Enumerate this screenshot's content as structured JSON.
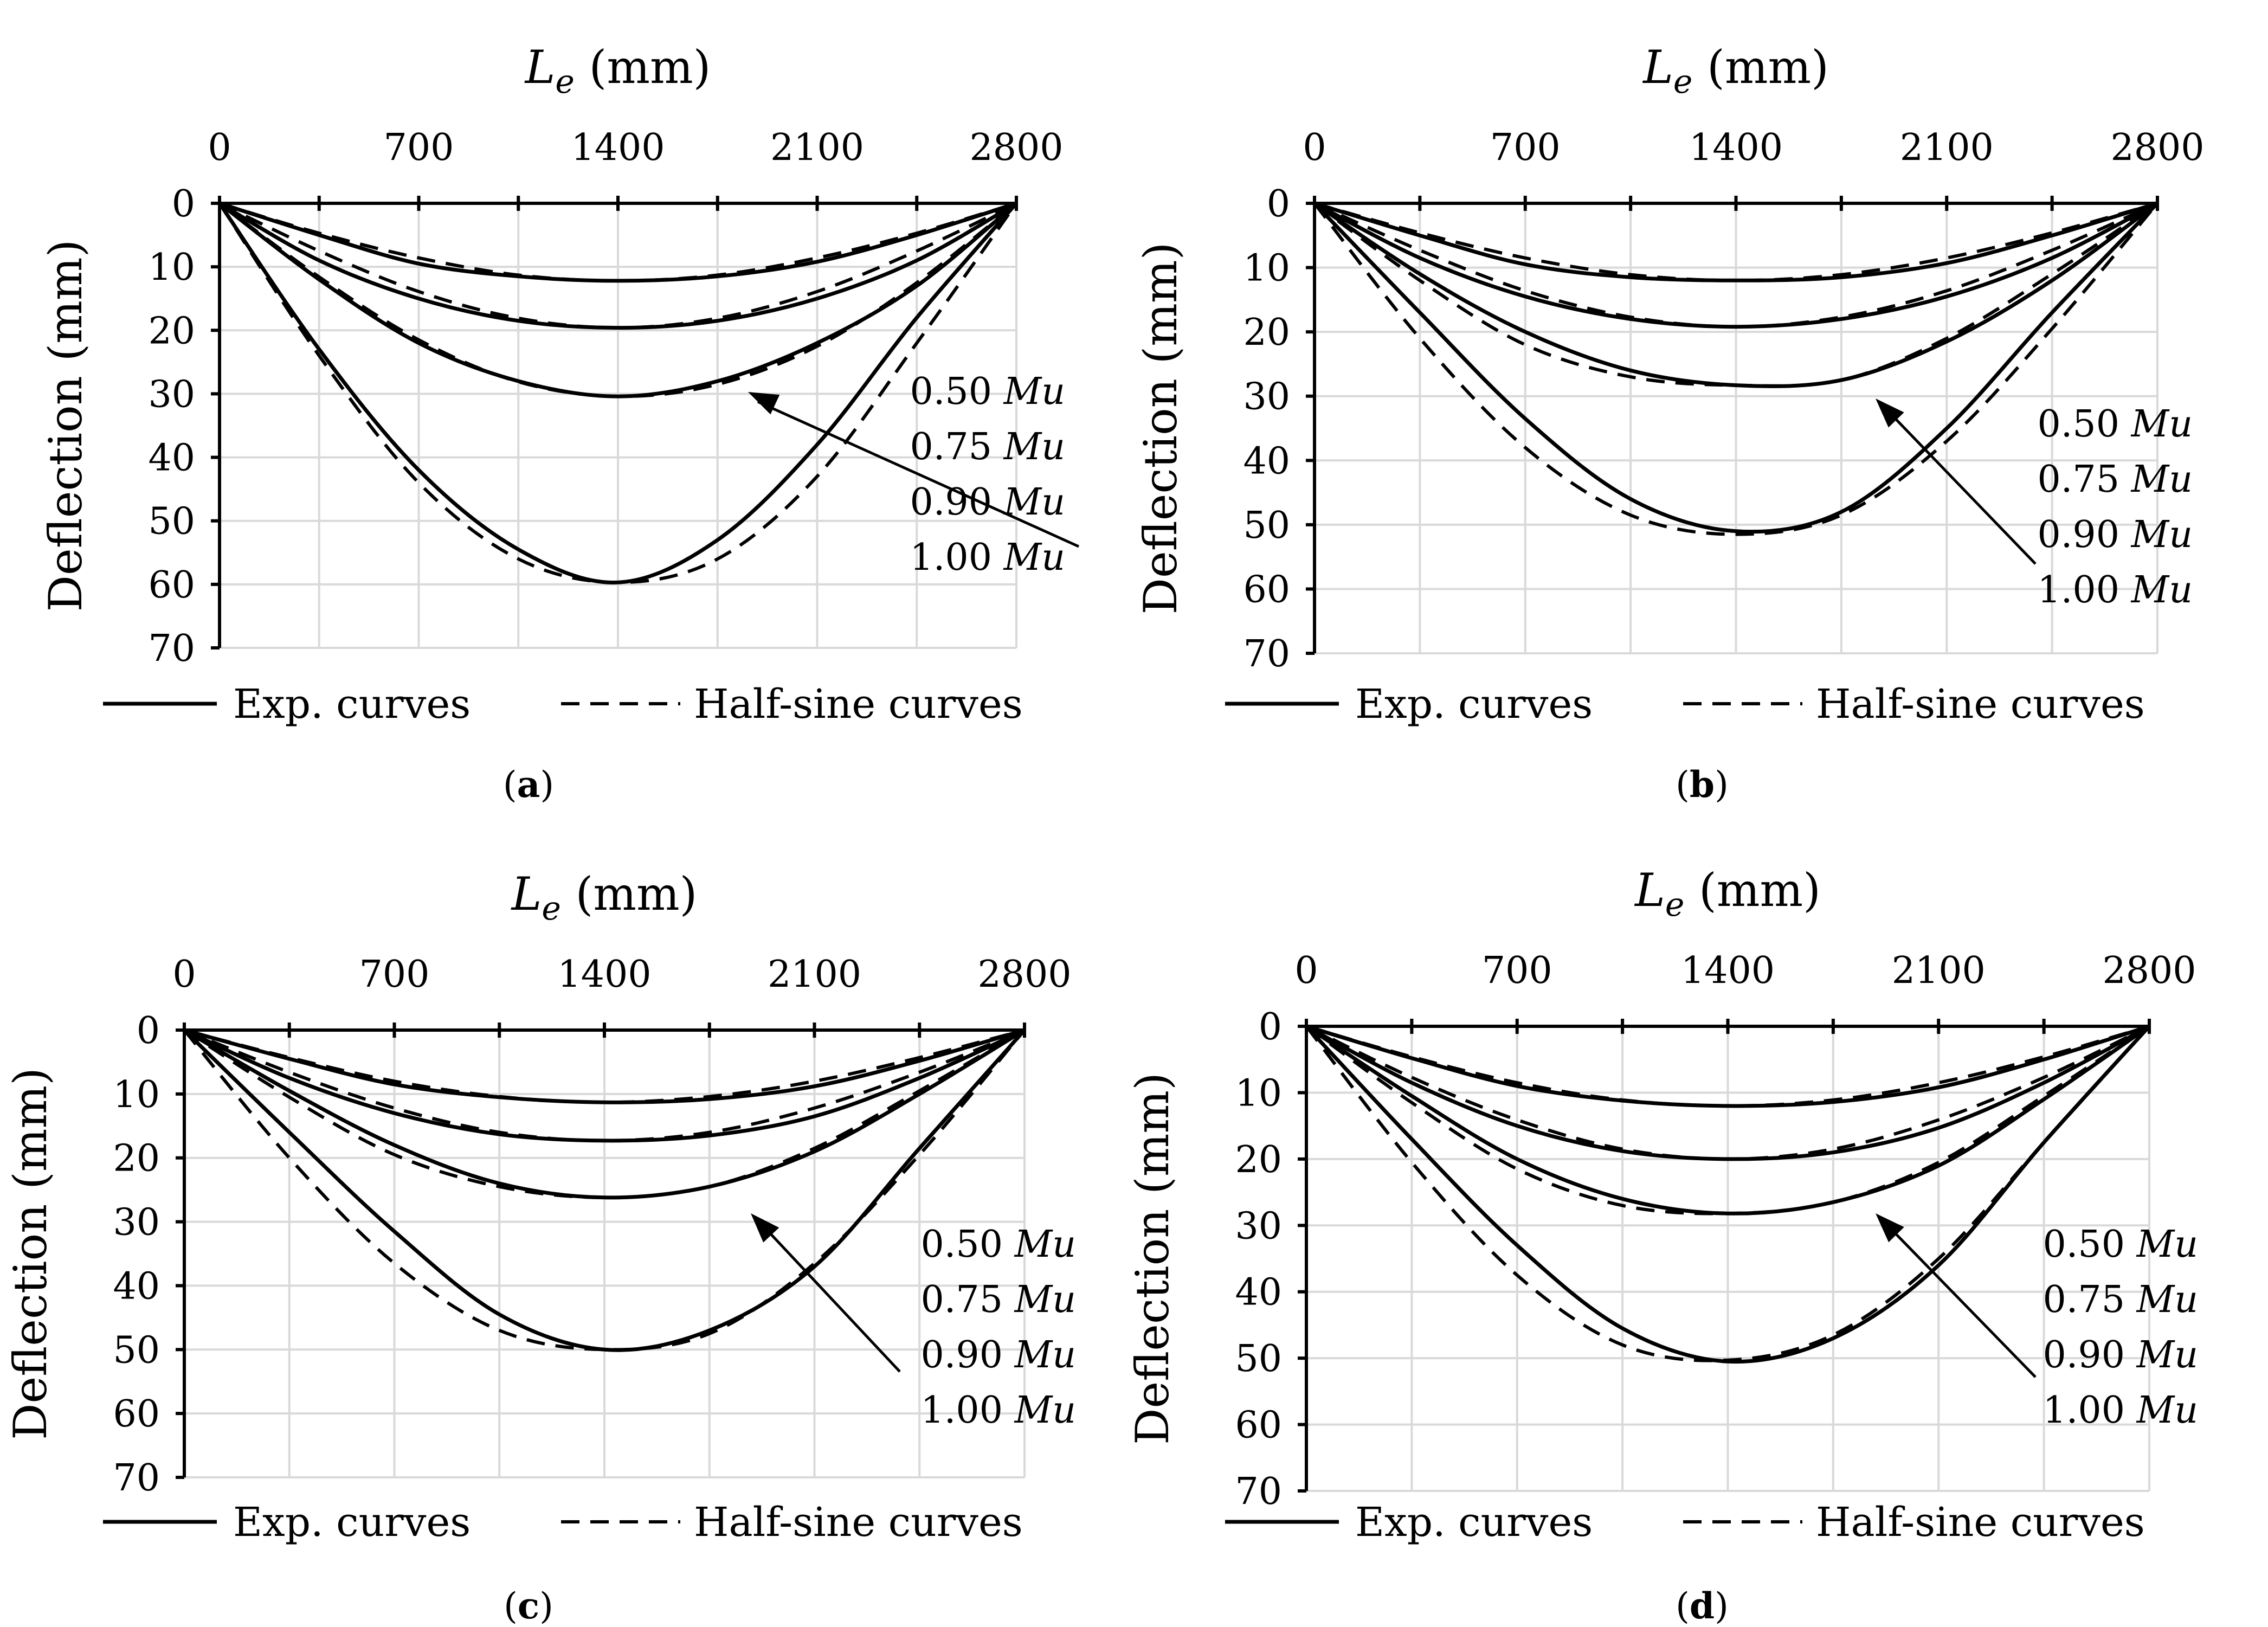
{
  "chart_data": [
    {
      "type": "line",
      "panel": "a",
      "caption": "(a)",
      "xlabel_main": "L",
      "xlabel_sub": "e",
      "xlabel_unit": "(mm)",
      "ylabel": "Deflection (mm)",
      "xlim": [
        0,
        2800
      ],
      "ylim": [
        0,
        70
      ],
      "y_inverted": true,
      "x_axis_position": "top",
      "x_ticks": [
        0,
        700,
        1400,
        2100,
        2800
      ],
      "y_ticks": [
        0,
        10,
        20,
        30,
        40,
        50,
        60,
        70
      ],
      "grid_x_step": 350,
      "load_labels": [
        {
          "num": "0.50",
          "unit": "Mu"
        },
        {
          "num": "0.75",
          "unit": "Mu"
        },
        {
          "num": "0.90",
          "unit": "Mu"
        },
        {
          "num": "1.00",
          "unit": "Mu"
        }
      ],
      "series": [
        {
          "name": "Exp. curves",
          "style": "solid",
          "load": "0.50 Mu",
          "x": [
            0,
            350,
            700,
            1050,
            1400,
            1750,
            2100,
            2450,
            2800
          ],
          "y": [
            0,
            5,
            9.5,
            11.5,
            12.2,
            11.5,
            9.2,
            5,
            0
          ]
        },
        {
          "name": "Half-sine curves",
          "style": "dashed",
          "load": "0.50 Mu",
          "x": [
            0,
            350,
            700,
            1050,
            1400,
            1750,
            2100,
            2450,
            2800
          ],
          "y": [
            0,
            4.7,
            8.6,
            11.3,
            12.2,
            11.3,
            8.6,
            4.7,
            0
          ]
        },
        {
          "name": "Exp. curves",
          "style": "solid",
          "load": "0.75 Mu",
          "x": [
            0,
            350,
            700,
            1050,
            1400,
            1750,
            2100,
            2450,
            2800
          ],
          "y": [
            0,
            9,
            15,
            18.5,
            19.6,
            18.5,
            15,
            9,
            0
          ]
        },
        {
          "name": "Half-sine curves",
          "style": "dashed",
          "load": "0.75 Mu",
          "x": [
            0,
            350,
            700,
            1050,
            1400,
            1750,
            2100,
            2450,
            2800
          ],
          "y": [
            0,
            7.5,
            13.9,
            18.1,
            19.6,
            18.1,
            13.9,
            7.5,
            0
          ]
        },
        {
          "name": "Exp. curves",
          "style": "solid",
          "load": "0.90 Mu",
          "x": [
            0,
            350,
            700,
            1050,
            1400,
            1750,
            2100,
            2450,
            2800
          ],
          "y": [
            0,
            12,
            22,
            28,
            30.4,
            28,
            22,
            13,
            0
          ]
        },
        {
          "name": "Half-sine curves",
          "style": "dashed",
          "load": "0.90 Mu",
          "x": [
            0,
            350,
            700,
            1050,
            1400,
            1750,
            2100,
            2450,
            2800
          ],
          "y": [
            0,
            11.6,
            21.5,
            28.1,
            30.4,
            28.5,
            22.5,
            12.5,
            0
          ]
        },
        {
          "name": "Exp. curves",
          "style": "solid",
          "load": "1.00 Mu",
          "x": [
            0,
            350,
            700,
            1050,
            1400,
            1750,
            2100,
            2450,
            2800
          ],
          "y": [
            0,
            23,
            42,
            54.5,
            59.7,
            53,
            38,
            18,
            0
          ]
        },
        {
          "name": "Half-sine curves",
          "style": "dashed",
          "load": "1.00 Mu",
          "x": [
            0,
            350,
            700,
            1050,
            1400,
            1750,
            2100,
            2450,
            2800
          ],
          "y": [
            0,
            24,
            44,
            56,
            59.7,
            56,
            43,
            22,
            0
          ]
        }
      ]
    },
    {
      "type": "line",
      "panel": "b",
      "caption": "(b)",
      "xlabel_main": "L",
      "xlabel_sub": "e",
      "xlabel_unit": "(mm)",
      "ylabel": "Deflection (mm)",
      "xlim": [
        0,
        2800
      ],
      "ylim": [
        0,
        70
      ],
      "y_inverted": true,
      "x_axis_position": "top",
      "x_ticks": [
        0,
        700,
        1400,
        2100,
        2800
      ],
      "y_ticks": [
        0,
        10,
        20,
        30,
        40,
        50,
        60,
        70
      ],
      "grid_x_step": 350,
      "load_labels": [
        {
          "num": "0.50",
          "unit": "Mu"
        },
        {
          "num": "0.75",
          "unit": "Mu"
        },
        {
          "num": "0.90",
          "unit": "Mu"
        },
        {
          "num": "1.00",
          "unit": "Mu"
        }
      ],
      "series": [
        {
          "name": "Exp. curves",
          "style": "solid",
          "load": "0.50 Mu",
          "x": [
            0,
            350,
            700,
            1050,
            1400,
            1750,
            2100,
            2450,
            2800
          ],
          "y": [
            0,
            5,
            9.5,
            11.5,
            12,
            11.5,
            9.3,
            5,
            0
          ]
        },
        {
          "name": "Half-sine curves",
          "style": "dashed",
          "load": "0.50 Mu",
          "x": [
            0,
            350,
            700,
            1050,
            1400,
            1750,
            2100,
            2450,
            2800
          ],
          "y": [
            0,
            4.6,
            8.5,
            11.1,
            12,
            11.1,
            8.5,
            4.6,
            0
          ]
        },
        {
          "name": "Exp. curves",
          "style": "solid",
          "load": "0.75 Mu",
          "x": [
            0,
            350,
            700,
            1050,
            1400,
            1750,
            2100,
            2450,
            2800
          ],
          "y": [
            0,
            8.5,
            14.5,
            18,
            19.2,
            18,
            14.5,
            8.5,
            0
          ]
        },
        {
          "name": "Half-sine curves",
          "style": "dashed",
          "load": "0.75 Mu",
          "x": [
            0,
            350,
            700,
            1050,
            1400,
            1750,
            2100,
            2450,
            2800
          ],
          "y": [
            0,
            7.3,
            13.6,
            17.7,
            19.2,
            17.7,
            13.6,
            7.3,
            0
          ]
        },
        {
          "name": "Exp. curves",
          "style": "solid",
          "load": "0.90 Mu",
          "x": [
            0,
            350,
            700,
            1050,
            1400,
            1750,
            2100,
            2450,
            2800
          ],
          "y": [
            0,
            11,
            20,
            26,
            28.3,
            27.5,
            21.5,
            12,
            0
          ]
        },
        {
          "name": "Half-sine curves",
          "style": "dashed",
          "load": "0.90 Mu",
          "x": [
            0,
            350,
            700,
            1050,
            1400,
            1750,
            2100,
            2450,
            2800
          ],
          "y": [
            0,
            12,
            22,
            27,
            28.3,
            27.5,
            21,
            11,
            0
          ]
        },
        {
          "name": "Exp. curves",
          "style": "solid",
          "load": "1.00 Mu",
          "x": [
            0,
            350,
            700,
            1050,
            1400,
            1750,
            2100,
            2450,
            2800
          ],
          "y": [
            0,
            17,
            33.5,
            46,
            51,
            48,
            35,
            17,
            0
          ]
        },
        {
          "name": "Half-sine curves",
          "style": "dashed",
          "load": "1.00 Mu",
          "x": [
            0,
            350,
            700,
            1050,
            1400,
            1750,
            2100,
            2450,
            2800
          ],
          "y": [
            0,
            21,
            38,
            48.5,
            51.5,
            48.5,
            37,
            19.5,
            0
          ]
        }
      ]
    },
    {
      "type": "line",
      "panel": "c",
      "caption": "(c)",
      "xlabel_main": "L",
      "xlabel_sub": "e",
      "xlabel_unit": "(mm)",
      "ylabel": "Deflection (mm)",
      "xlim": [
        0,
        2800
      ],
      "ylim": [
        0,
        70
      ],
      "y_inverted": true,
      "x_axis_position": "top",
      "x_ticks": [
        0,
        700,
        1400,
        2100,
        2800
      ],
      "y_ticks": [
        0,
        10,
        20,
        30,
        40,
        50,
        60,
        70
      ],
      "grid_x_step": 350,
      "load_labels": [
        {
          "num": "0.50",
          "unit": "Mu"
        },
        {
          "num": "0.75",
          "unit": "Mu"
        },
        {
          "num": "0.90",
          "unit": "Mu"
        },
        {
          "num": "1.00",
          "unit": "Mu"
        }
      ],
      "series": [
        {
          "name": "Exp. curves",
          "style": "solid",
          "load": "0.50 Mu",
          "x": [
            0,
            350,
            700,
            1050,
            1400,
            1750,
            2100,
            2450,
            2800
          ],
          "y": [
            0,
            4.5,
            8.5,
            10.5,
            11.3,
            10.8,
            8.8,
            4.8,
            0
          ]
        },
        {
          "name": "Half-sine curves",
          "style": "dashed",
          "load": "0.50 Mu",
          "x": [
            0,
            350,
            700,
            1050,
            1400,
            1750,
            2100,
            2450,
            2800
          ],
          "y": [
            0,
            4.3,
            8,
            10.4,
            11.3,
            10.4,
            8,
            4.3,
            0
          ]
        },
        {
          "name": "Exp. curves",
          "style": "solid",
          "load": "0.75 Mu",
          "x": [
            0,
            350,
            700,
            1050,
            1400,
            1750,
            2100,
            2450,
            2800
          ],
          "y": [
            0,
            7.5,
            13,
            16.3,
            17.3,
            16.5,
            13.5,
            7.5,
            0
          ]
        },
        {
          "name": "Half-sine curves",
          "style": "dashed",
          "load": "0.75 Mu",
          "x": [
            0,
            350,
            700,
            1050,
            1400,
            1750,
            2100,
            2450,
            2800
          ],
          "y": [
            0,
            6.6,
            12.2,
            16,
            17.3,
            16,
            12.2,
            6.6,
            0
          ]
        },
        {
          "name": "Exp. curves",
          "style": "solid",
          "load": "0.90 Mu",
          "x": [
            0,
            350,
            700,
            1050,
            1400,
            1750,
            2100,
            2450,
            2800
          ],
          "y": [
            0,
            9.5,
            18,
            24,
            26.2,
            24.5,
            19,
            10,
            0
          ]
        },
        {
          "name": "Half-sine curves",
          "style": "dashed",
          "load": "0.90 Mu",
          "x": [
            0,
            350,
            700,
            1050,
            1400,
            1750,
            2100,
            2450,
            2800
          ],
          "y": [
            0,
            10.5,
            19.5,
            24.5,
            26.2,
            24.5,
            18.5,
            9.5,
            0
          ]
        },
        {
          "name": "Exp. curves",
          "style": "solid",
          "load": "1.00 Mu",
          "x": [
            0,
            350,
            700,
            1050,
            1400,
            1750,
            2100,
            2450,
            2800
          ],
          "y": [
            0,
            16,
            31.5,
            44.5,
            50,
            47,
            37,
            18.5,
            0
          ]
        },
        {
          "name": "Half-sine curves",
          "style": "dashed",
          "load": "1.00 Mu",
          "x": [
            0,
            350,
            700,
            1050,
            1400,
            1750,
            2100,
            2450,
            2800
          ],
          "y": [
            0,
            20,
            36.5,
            47,
            50,
            47.5,
            36.5,
            19.5,
            0
          ]
        }
      ]
    },
    {
      "type": "line",
      "panel": "d",
      "caption": "(d)",
      "xlabel_main": "L",
      "xlabel_sub": "e",
      "xlabel_unit": "(mm)",
      "ylabel": "Deflection (mm)",
      "xlim": [
        0,
        2800
      ],
      "ylim": [
        0,
        70
      ],
      "y_inverted": true,
      "x_axis_position": "top",
      "x_ticks": [
        0,
        700,
        1400,
        2100,
        2800
      ],
      "y_ticks": [
        0,
        10,
        20,
        30,
        40,
        50,
        60,
        70
      ],
      "grid_x_step": 350,
      "load_labels": [
        {
          "num": "0.50",
          "unit": "Mu"
        },
        {
          "num": "0.75",
          "unit": "Mu"
        },
        {
          "num": "0.90",
          "unit": "Mu"
        },
        {
          "num": "1.00",
          "unit": "Mu"
        }
      ],
      "series": [
        {
          "name": "Exp. curves",
          "style": "solid",
          "load": "0.50 Mu",
          "x": [
            0,
            350,
            700,
            1050,
            1400,
            1750,
            2100,
            2450,
            2800
          ],
          "y": [
            0,
            4.8,
            9,
            11.2,
            12,
            11.4,
            9.2,
            5,
            0
          ]
        },
        {
          "name": "Half-sine curves",
          "style": "dashed",
          "load": "0.50 Mu",
          "x": [
            0,
            350,
            700,
            1050,
            1400,
            1750,
            2100,
            2450,
            2800
          ],
          "y": [
            0,
            4.6,
            8.5,
            11.1,
            12,
            11.1,
            8.5,
            4.6,
            0
          ]
        },
        {
          "name": "Exp. curves",
          "style": "solid",
          "load": "0.75 Mu",
          "x": [
            0,
            350,
            700,
            1050,
            1400,
            1750,
            2100,
            2450,
            2800
          ],
          "y": [
            0,
            8.5,
            15,
            18.8,
            20,
            19,
            15.3,
            8.5,
            0
          ]
        },
        {
          "name": "Half-sine curves",
          "style": "dashed",
          "load": "0.75 Mu",
          "x": [
            0,
            350,
            700,
            1050,
            1400,
            1750,
            2100,
            2450,
            2800
          ],
          "y": [
            0,
            7.7,
            14.1,
            18.5,
            20,
            18.5,
            14.1,
            7.7,
            0
          ]
        },
        {
          "name": "Exp. curves",
          "style": "solid",
          "load": "0.90 Mu",
          "x": [
            0,
            350,
            700,
            1050,
            1400,
            1750,
            2100,
            2450,
            2800
          ],
          "y": [
            0,
            10.5,
            20,
            26,
            28.2,
            26.5,
            21,
            11,
            0
          ]
        },
        {
          "name": "Half-sine curves",
          "style": "dashed",
          "load": "0.90 Mu",
          "x": [
            0,
            350,
            700,
            1050,
            1400,
            1750,
            2100,
            2450,
            2800
          ],
          "y": [
            0,
            11.5,
            21.5,
            27,
            28.2,
            26.5,
            20.5,
            10.5,
            0
          ]
        },
        {
          "name": "Exp. curves",
          "style": "solid",
          "load": "1.00 Mu",
          "x": [
            0,
            350,
            700,
            1050,
            1400,
            1750,
            2100,
            2450,
            2800
          ],
          "y": [
            0,
            17,
            33,
            45.5,
            50.5,
            47,
            36,
            17.5,
            0
          ]
        },
        {
          "name": "Half-sine curves",
          "style": "dashed",
          "load": "1.00 Mu",
          "x": [
            0,
            350,
            700,
            1050,
            1400,
            1750,
            2100,
            2450,
            2800
          ],
          "y": [
            0,
            20.5,
            37.5,
            48,
            50.3,
            46.5,
            35,
            17.5,
            0
          ]
        }
      ]
    }
  ],
  "legend": {
    "exp_label": "Exp. curves",
    "sine_label": "Half-sine curves",
    "position": "bottom"
  }
}
